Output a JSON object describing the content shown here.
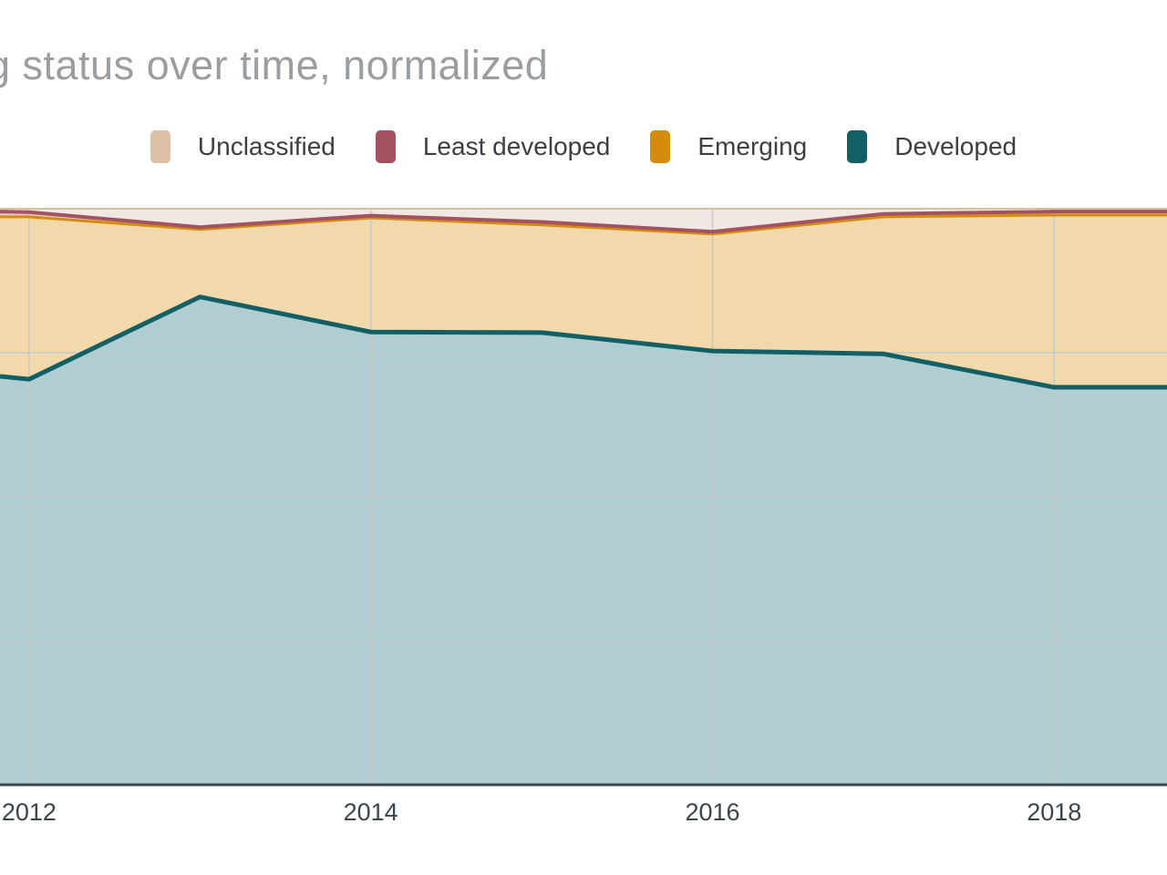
{
  "header": {
    "title": "g status over time, normalized"
  },
  "legend": {
    "items": [
      {
        "label": "Unclassified",
        "color": "#ddc1a6"
      },
      {
        "label": "Least developed",
        "color": "#a4525f"
      },
      {
        "label": "Emerging",
        "color": "#d58c0c"
      },
      {
        "label": "Developed",
        "color": "#135f66"
      }
    ]
  },
  "chart_data": {
    "type": "area",
    "stacked": true,
    "normalized": true,
    "title": "g status over time, normalized",
    "xlabel": "",
    "ylabel": "",
    "xlim": [
      2011.83,
      2018.66
    ],
    "ylim": [
      0,
      100
    ],
    "grid": "on",
    "legend_position": "top",
    "x": [
      2011.83,
      2012,
      2013,
      2014,
      2015,
      2016,
      2017,
      2018,
      2018.66
    ],
    "series": [
      {
        "name": "Developed",
        "values": [
          70.9,
          70.4,
          84.7,
          78.6,
          78.5,
          75.3,
          74.8,
          69.0,
          69.0
        ],
        "stroke": "#135f66",
        "fill": "#b0cdd1",
        "stroke_width": 5
      },
      {
        "name": "Emerging",
        "values": [
          27.7,
          28.2,
          11.7,
          19.8,
          18.7,
          20.3,
          23.8,
          29.9,
          29.9
        ],
        "stroke": "#d58c0c",
        "fill": "#f2d9ab",
        "stroke_width": 3
      },
      {
        "name": "Least developed",
        "values": [
          0.9,
          0.8,
          0.4,
          0.4,
          0.5,
          0.4,
          0.5,
          0.6,
          0.6
        ],
        "stroke": "#a4525f",
        "fill": "#e6c8c4",
        "stroke_width": 4
      },
      {
        "name": "Unclassified",
        "values": [
          0.5,
          0.6,
          3.2,
          1.2,
          2.3,
          4.0,
          0.9,
          0.5,
          0.5
        ],
        "stroke": "#d9bfa4",
        "fill": "#f0e8e2",
        "stroke_width": 2
      }
    ],
    "x_ticks": [
      {
        "value": 2012,
        "label": "2012"
      },
      {
        "value": 2014,
        "label": "2014"
      },
      {
        "value": 2016,
        "label": "2016"
      },
      {
        "value": 2018,
        "label": "2018"
      }
    ],
    "y_grid_values": [
      25,
      50,
      75,
      100
    ],
    "grid_color": "#c4c9ca",
    "axis_color": "#3a454c"
  }
}
